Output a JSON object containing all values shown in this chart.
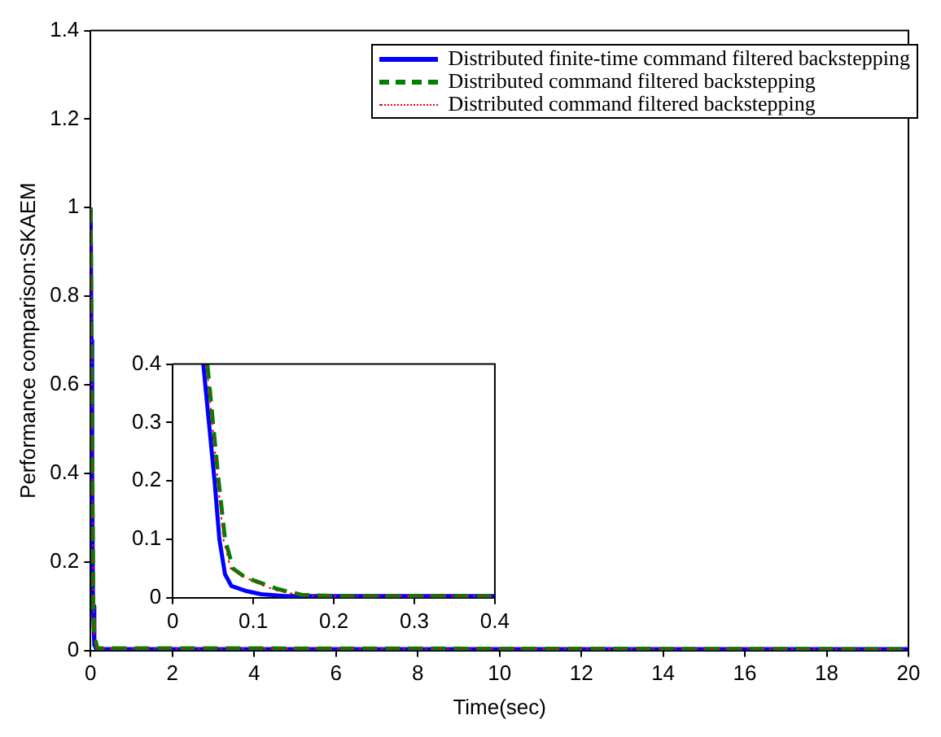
{
  "chart_data": [
    {
      "type": "line",
      "xlabel": "Time(sec)",
      "ylabel": "Performance comparison:SKAEM",
      "xlim": [
        0,
        20
      ],
      "xticks": [
        0,
        2,
        4,
        6,
        8,
        10,
        12,
        14,
        16,
        18,
        20
      ],
      "ylim": [
        0,
        1.4
      ],
      "yticks": [
        0,
        0.2,
        0.4,
        0.6,
        0.8,
        1,
        1.2,
        1.4
      ],
      "grid": false,
      "legend": "top right",
      "marker": "none",
      "series": [
        {
          "name": "Distributed finite-time command filtered backstepping",
          "color": "#0000ff",
          "line_style": "solid",
          "x": [
            0,
            0.02,
            0.038,
            0.058,
            0.09,
            0.14,
            20
          ],
          "values": [
            1,
            0.7,
            0.4,
            0.1,
            0.012,
            0.003,
            0.003
          ]
        },
        {
          "name": "Distributed command filtered backstepping",
          "color": "#008000",
          "line_style": "dashed",
          "x": [
            0,
            0.02,
            0.043,
            0.065,
            0.09,
            0.16,
            20
          ],
          "values": [
            1,
            0.72,
            0.4,
            0.1,
            0.035,
            0.005,
            0.003
          ]
        },
        {
          "name": "Distributed command filtered backstepping",
          "color": "#ff0000",
          "line_style": "dotted",
          "x": [
            0,
            0.02,
            0.042,
            0.063,
            0.09,
            0.16,
            20
          ],
          "values": [
            1,
            0.72,
            0.4,
            0.1,
            0.035,
            0.004,
            0.003
          ]
        }
      ]
    },
    {
      "type": "line",
      "xlim": [
        0,
        0.4
      ],
      "xticks": [
        0,
        0.1,
        0.2,
        0.3,
        0.4
      ],
      "ylim": [
        0,
        0.4
      ],
      "yticks": [
        0,
        0.1,
        0.2,
        0.3,
        0.4
      ],
      "grid": false,
      "marker": "none",
      "series": [
        {
          "color": "#0000ff",
          "line_style": "solid",
          "x": [
            0.038,
            0.045,
            0.052,
            0.058,
            0.065,
            0.073,
            0.09,
            0.11,
            0.14,
            0.2,
            0.4
          ],
          "values": [
            0.4,
            0.3,
            0.2,
            0.1,
            0.04,
            0.02,
            0.012,
            0.006,
            0.003,
            0.003,
            0.003
          ]
        },
        {
          "color": "#008000",
          "line_style": "dashed",
          "x": [
            0.043,
            0.05,
            0.057,
            0.065,
            0.075,
            0.09,
            0.11,
            0.13,
            0.16,
            0.2,
            0.4
          ],
          "values": [
            0.4,
            0.3,
            0.2,
            0.1,
            0.05,
            0.035,
            0.025,
            0.015,
            0.005,
            0.003,
            0.003
          ]
        },
        {
          "color": "#ff0000",
          "line_style": "dotted",
          "x": [
            0.042,
            0.049,
            0.056,
            0.063,
            0.072,
            0.09,
            0.11,
            0.13,
            0.16,
            0.2,
            0.4
          ],
          "values": [
            0.4,
            0.3,
            0.2,
            0.1,
            0.05,
            0.035,
            0.022,
            0.012,
            0.004,
            0.003,
            0.003
          ]
        }
      ]
    }
  ]
}
